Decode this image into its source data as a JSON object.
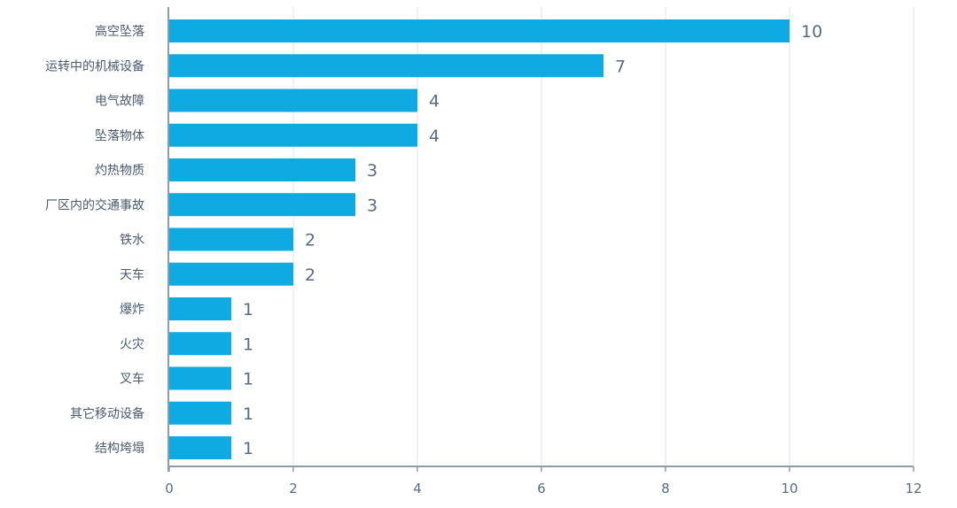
{
  "chart_data": {
    "type": "bar",
    "orientation": "horizontal",
    "categories": [
      "高空坠落",
      "运转中的机械设备",
      "电气故障",
      "坠落物体",
      "灼热物质",
      "厂区内的交通事故",
      "铁水",
      "天车",
      "爆炸",
      "火灾",
      "叉车",
      "其它移动设备",
      "结构垮塌"
    ],
    "values": [
      10,
      7,
      4,
      4,
      3,
      3,
      2,
      2,
      1,
      1,
      1,
      1,
      1
    ],
    "xlim": [
      0,
      12
    ],
    "xticks": [
      "0",
      "2",
      "4",
      "6",
      "8",
      "10",
      "12"
    ],
    "title": "",
    "xlabel": "",
    "ylabel": "",
    "grid": "vertical",
    "data_labels": true,
    "colors": {
      "bar": "#10aae2",
      "grid": "#dfe7ef",
      "axis": "#8d9db0",
      "text": "#5a6b80"
    }
  }
}
